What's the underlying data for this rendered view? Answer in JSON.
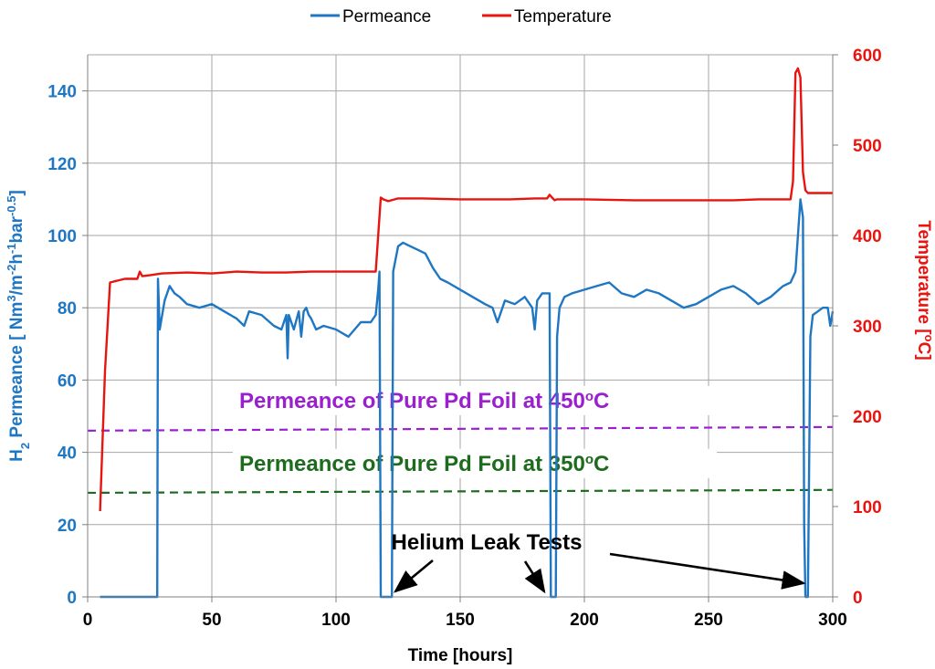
{
  "colors": {
    "permeance": "#1f77c4",
    "temperature": "#e8140f",
    "ref450": "#9b1fcf",
    "ref350": "#1d6b1d",
    "annotation": "#000000",
    "grid": "#a6a6a6"
  },
  "legend": {
    "placement": "top-center",
    "permeance_label": "Permeance",
    "temperature_label": "Temperature"
  },
  "chart_data": {
    "type": "line",
    "grid": true,
    "xlabel": "Time [hours]",
    "ylabel_left": "H2 Permeance [ Nm3/m-2h-1bar-0.5]",
    "ylabel_left_parts": [
      "H",
      "2",
      " Permeance [ Nm",
      "3",
      "/m",
      "-2",
      "h",
      "-1",
      "bar",
      "-0.5",
      "]"
    ],
    "ylabel_right": "Temperature [oC]",
    "ylabel_right_parts": [
      "Temperature [",
      "o",
      "C]"
    ],
    "xlim": [
      0,
      300
    ],
    "ylim_left": [
      0,
      150
    ],
    "ylim_right": [
      0,
      600
    ],
    "x_ticks": [
      "0",
      "50",
      "100",
      "150",
      "200",
      "250",
      "300"
    ],
    "y_left_ticks": [
      "0",
      "20",
      "40",
      "60",
      "80",
      "100",
      "120",
      "140"
    ],
    "y_right_ticks": [
      "0",
      "100",
      "200",
      "300",
      "400",
      "500",
      "600"
    ],
    "series": [
      {
        "name": "Permeance",
        "axis": "left",
        "x": [
          5,
          28,
          28.3,
          29,
          31,
          33,
          35,
          37,
          40,
          45,
          50,
          55,
          60,
          63,
          65,
          70,
          75,
          78,
          80,
          80.5,
          81,
          83,
          85,
          86,
          87,
          88,
          89,
          90,
          92,
          95,
          100,
          105,
          110,
          114,
          116,
          117,
          117.5,
          118,
          119,
          121,
          122.5,
          123,
          125,
          127,
          130,
          133,
          136,
          139,
          142,
          145,
          150,
          155,
          160,
          163,
          165,
          168,
          172,
          176,
          179,
          180,
          181,
          183,
          186,
          186.5,
          187,
          188.5,
          189,
          190,
          192,
          195,
          200,
          205,
          210,
          215,
          220,
          225,
          230,
          235,
          240,
          245,
          250,
          255,
          260,
          265,
          270,
          275,
          280,
          283,
          285,
          286,
          287,
          288,
          288.5,
          289,
          290,
          291,
          292,
          294,
          296,
          298,
          299,
          300
        ],
        "y": [
          0,
          0,
          88,
          74,
          82,
          86,
          84,
          83,
          81,
          80,
          81,
          79,
          77,
          75,
          79,
          78,
          75,
          74,
          78,
          66,
          78,
          74,
          79,
          72,
          79,
          80,
          78,
          77,
          74,
          75,
          74,
          72,
          76,
          76,
          78,
          85,
          90,
          0,
          0,
          0,
          0,
          90,
          97,
          98,
          97,
          96,
          95,
          91,
          88,
          87,
          85,
          83,
          81,
          80,
          76,
          82,
          81,
          83,
          80,
          74,
          82,
          84,
          84,
          0,
          0,
          0,
          72,
          80,
          83,
          84,
          85,
          86,
          87,
          84,
          83,
          85,
          84,
          82,
          80,
          81,
          83,
          85,
          86,
          84,
          81,
          83,
          86,
          87,
          90,
          100,
          110,
          105,
          20,
          0,
          0,
          72,
          78,
          79,
          80,
          80,
          75,
          79
        ]
      },
      {
        "name": "Temperature",
        "axis": "right",
        "x": [
          5,
          7,
          9,
          12,
          15,
          18,
          20,
          21,
          22,
          25,
          30,
          40,
          50,
          60,
          70,
          80,
          90,
          100,
          110,
          116,
          117,
          118,
          119,
          121,
          125,
          135,
          150,
          160,
          170,
          180,
          185,
          186,
          187,
          188,
          189,
          200,
          220,
          240,
          260,
          270,
          283,
          284,
          285,
          286,
          287,
          288,
          289,
          290,
          300
        ],
        "y": [
          95,
          250,
          348,
          350,
          352,
          352,
          352,
          360,
          355,
          356,
          358,
          359,
          358,
          360,
          359,
          359,
          360,
          360,
          360,
          360,
          400,
          442,
          440,
          438,
          441,
          441,
          440,
          440,
          440,
          441,
          441,
          445,
          442,
          439,
          440,
          440,
          439,
          439,
          439,
          440,
          440,
          460,
          580,
          585,
          575,
          470,
          450,
          447,
          447
        ]
      }
    ],
    "reference_lines": [
      {
        "label": "Permeance of Pure Pd Foil at 450oC",
        "label_parts": [
          "Permeance of Pure Pd Foil at 450",
          "o",
          "C"
        ],
        "y_start": 46,
        "y_end": 47,
        "axis": "left",
        "style": "dashed"
      },
      {
        "label": "Permeance of Pure Pd Foil at 350oC",
        "label_parts": [
          "Permeance of Pure Pd Foil at 350",
          "o",
          "C"
        ],
        "y_start": 28.8,
        "y_end": 29.6,
        "axis": "left",
        "style": "dashed"
      }
    ],
    "annotations": [
      {
        "text": "Helium Leak Tests",
        "arrow_targets_x": [
          122,
          186,
          288
        ]
      }
    ]
  }
}
